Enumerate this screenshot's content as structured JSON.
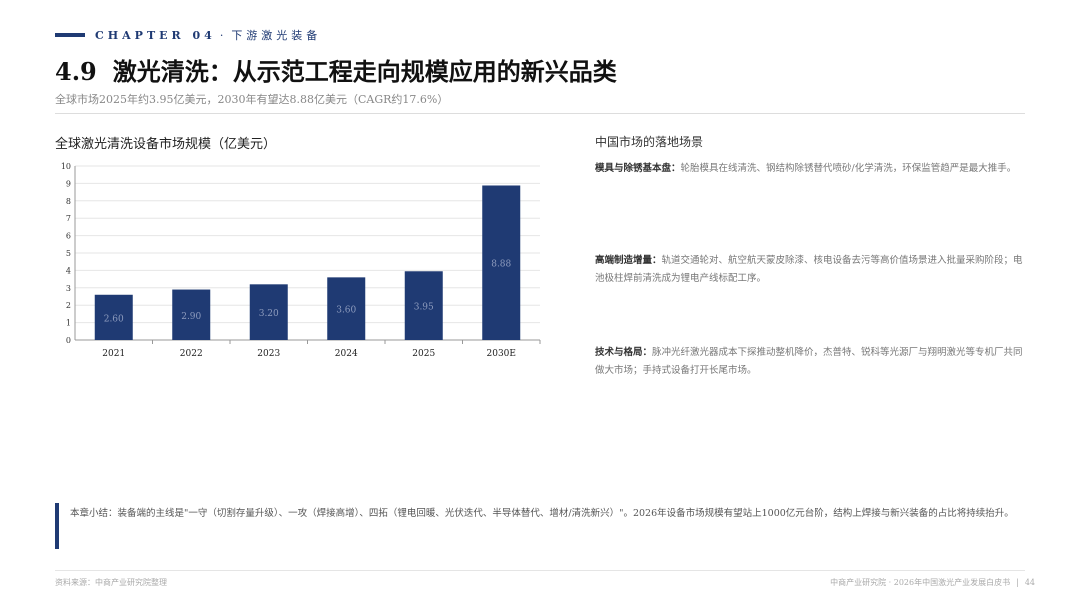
{
  "header": {
    "chapter_label": "CHAPTER 04",
    "chapter_sep": "·",
    "chapter_title": "下游激光装备",
    "section_number": "4.9",
    "section_title": "激光清洗：从示范工程走向规模应用的新兴品类",
    "subtitle": "全球市场2025年约3.95亿美元，2030年有望达8.88亿美元（CAGR约17.6%）"
  },
  "colors": {
    "accent": "#1f3a73",
    "bar": "#1f3a73"
  },
  "chart_title": "全球激光清洗设备市场规模（亿美元）",
  "chart_data": {
    "type": "bar",
    "categories": [
      "2021",
      "2022",
      "2023",
      "2024",
      "2025",
      "2030E"
    ],
    "values": [
      2.6,
      2.9,
      3.2,
      3.6,
      3.95,
      8.88
    ],
    "labels": [
      "2.60",
      "2.90",
      "3.20",
      "3.60",
      "3.95",
      "8.88"
    ],
    "ylim": [
      0,
      10
    ],
    "yticks": [
      "0",
      "1",
      "2",
      "3",
      "4",
      "5",
      "6",
      "7",
      "8",
      "9",
      "10"
    ],
    "grid": true
  },
  "right": {
    "title": "中国市场的落地场景",
    "p1_label": "模具与除锈基本盘：",
    "p1_text": "轮胎模具在线清洗、钢结构除锈替代喷砂/化学清洗，环保监管趋严是最大推手。",
    "p2_label": "高端制造增量：",
    "p2_text": "轨道交通轮对、航空航天蒙皮除漆、核电设备去污等高价值场景进入批量采购阶段；电池极柱焊前清洗成为锂电产线标配工序。",
    "p3_label": "技术与格局：",
    "p3_text": "脉冲光纤激光器成本下探推动整机降价，杰普特、锐科等光源厂与翔明激光等专机厂共同做大市场；手持式设备打开长尾市场。"
  },
  "summary": "本章小结：装备端的主线是\"一守（切割存量升级）、一攻（焊接高增）、四拓（锂电回暖、光伏迭代、半导体替代、增材/清洗新兴）\"。2026年设备市场规模有望站上1000亿元台阶，结构上焊接与新兴装备的占比将持续抬升。",
  "footer": {
    "source": "资料来源：中商产业研究院整理",
    "publisher": "中商产业研究院 · 2026年中国激光产业发展白皮书",
    "sep": "|",
    "page": "44"
  }
}
